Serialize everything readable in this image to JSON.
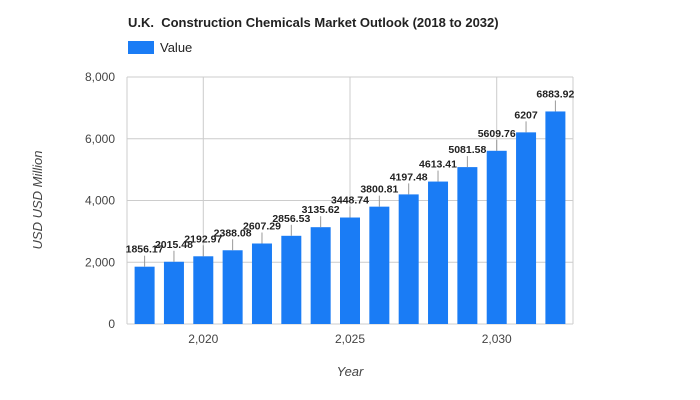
{
  "chart_data": {
    "type": "bar",
    "title": "U.K.  Construction Chemicals Market Outlook (2018 to 2032)",
    "xlabel": "Year",
    "ylabel": "USD USD Million",
    "series": [
      {
        "name": "Value",
        "x": [
          2018,
          2019,
          2020,
          2021,
          2022,
          2023,
          2024,
          2025,
          2026,
          2027,
          2028,
          2029,
          2030,
          2031,
          2032
        ],
        "values": [
          1856.17,
          2015.48,
          2192.97,
          2388.08,
          2607.29,
          2856.53,
          3135.62,
          3448.74,
          3800.81,
          4197.48,
          4613.41,
          5081.58,
          5609.76,
          6207,
          6883.92
        ],
        "labels": [
          "1856.17",
          "2015.48",
          "2192.97",
          "2388.08",
          "2607.29",
          "2856.53",
          "3135.62",
          "3448.74",
          "3800.81",
          "4197.48",
          "4613.41",
          "5081.58",
          "5609.76",
          "6207",
          "6883.92"
        ]
      }
    ],
    "ylim": [
      0,
      8000
    ],
    "xlim": [
      2017.4,
      2032.6
    ],
    "y_ticks": [
      0,
      2000,
      4000,
      6000,
      8000
    ],
    "y_tick_labels": [
      "0",
      "2,000",
      "4,000",
      "6,000",
      "8,000"
    ],
    "x_ticks": [
      2020,
      2025,
      2030
    ],
    "x_tick_labels": [
      "2,020",
      "2,025",
      "2,030"
    ],
    "legend_position": "top-left",
    "grid": true,
    "colors": {
      "bar": "#1a7cf5",
      "grid": "#cccccc",
      "text": "#444444",
      "label": "#222222"
    }
  }
}
